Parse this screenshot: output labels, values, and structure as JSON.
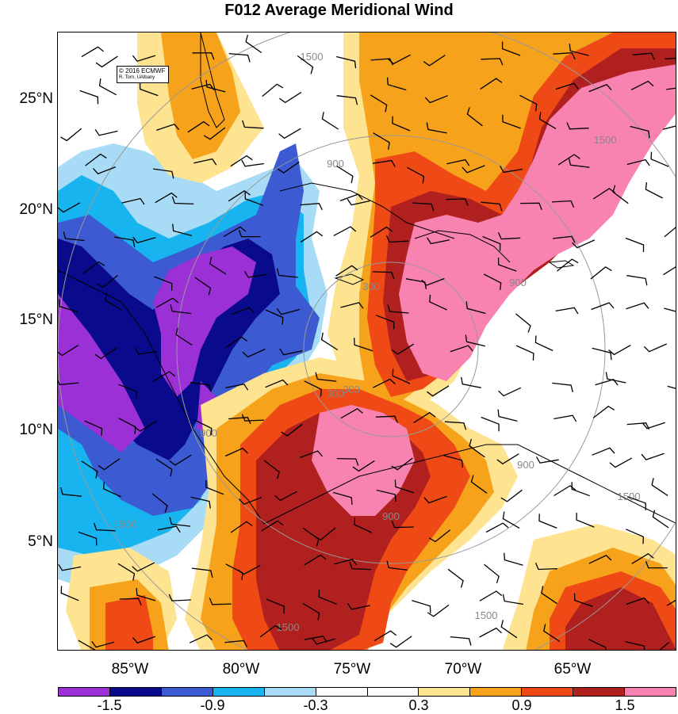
{
  "title": "F012 Average Meridional Wind",
  "credit": {
    "line1": "© 2016 ECMWF",
    "line2": "R. Torn, UAlbany"
  },
  "latitude_labels": [
    "25°N",
    "20°N",
    "15°N",
    "10°N",
    "5°N"
  ],
  "longitude_labels": [
    "85°W",
    "80°W",
    "75°W",
    "70°W",
    "65°W"
  ],
  "colorbar": {
    "colors": [
      "#9b30d6",
      "#0a0a8c",
      "#3c5ad2",
      "#18b4f0",
      "#a8dcf6",
      "#ffffff",
      "#ffffff",
      "#fee490",
      "#f7a21b",
      "#ef4a16",
      "#b0201e",
      "#f883b0"
    ],
    "tick_labels": [
      "-1.5",
      "-0.9",
      "-0.3",
      "0.3",
      "0.9",
      "1.5"
    ]
  },
  "contour_labels": [
    "1500",
    "900",
    "300",
    "300",
    "900",
    "1500",
    "1500",
    "900",
    "300",
    "900",
    "1500",
    "1500",
    "900",
    "1500"
  ]
}
